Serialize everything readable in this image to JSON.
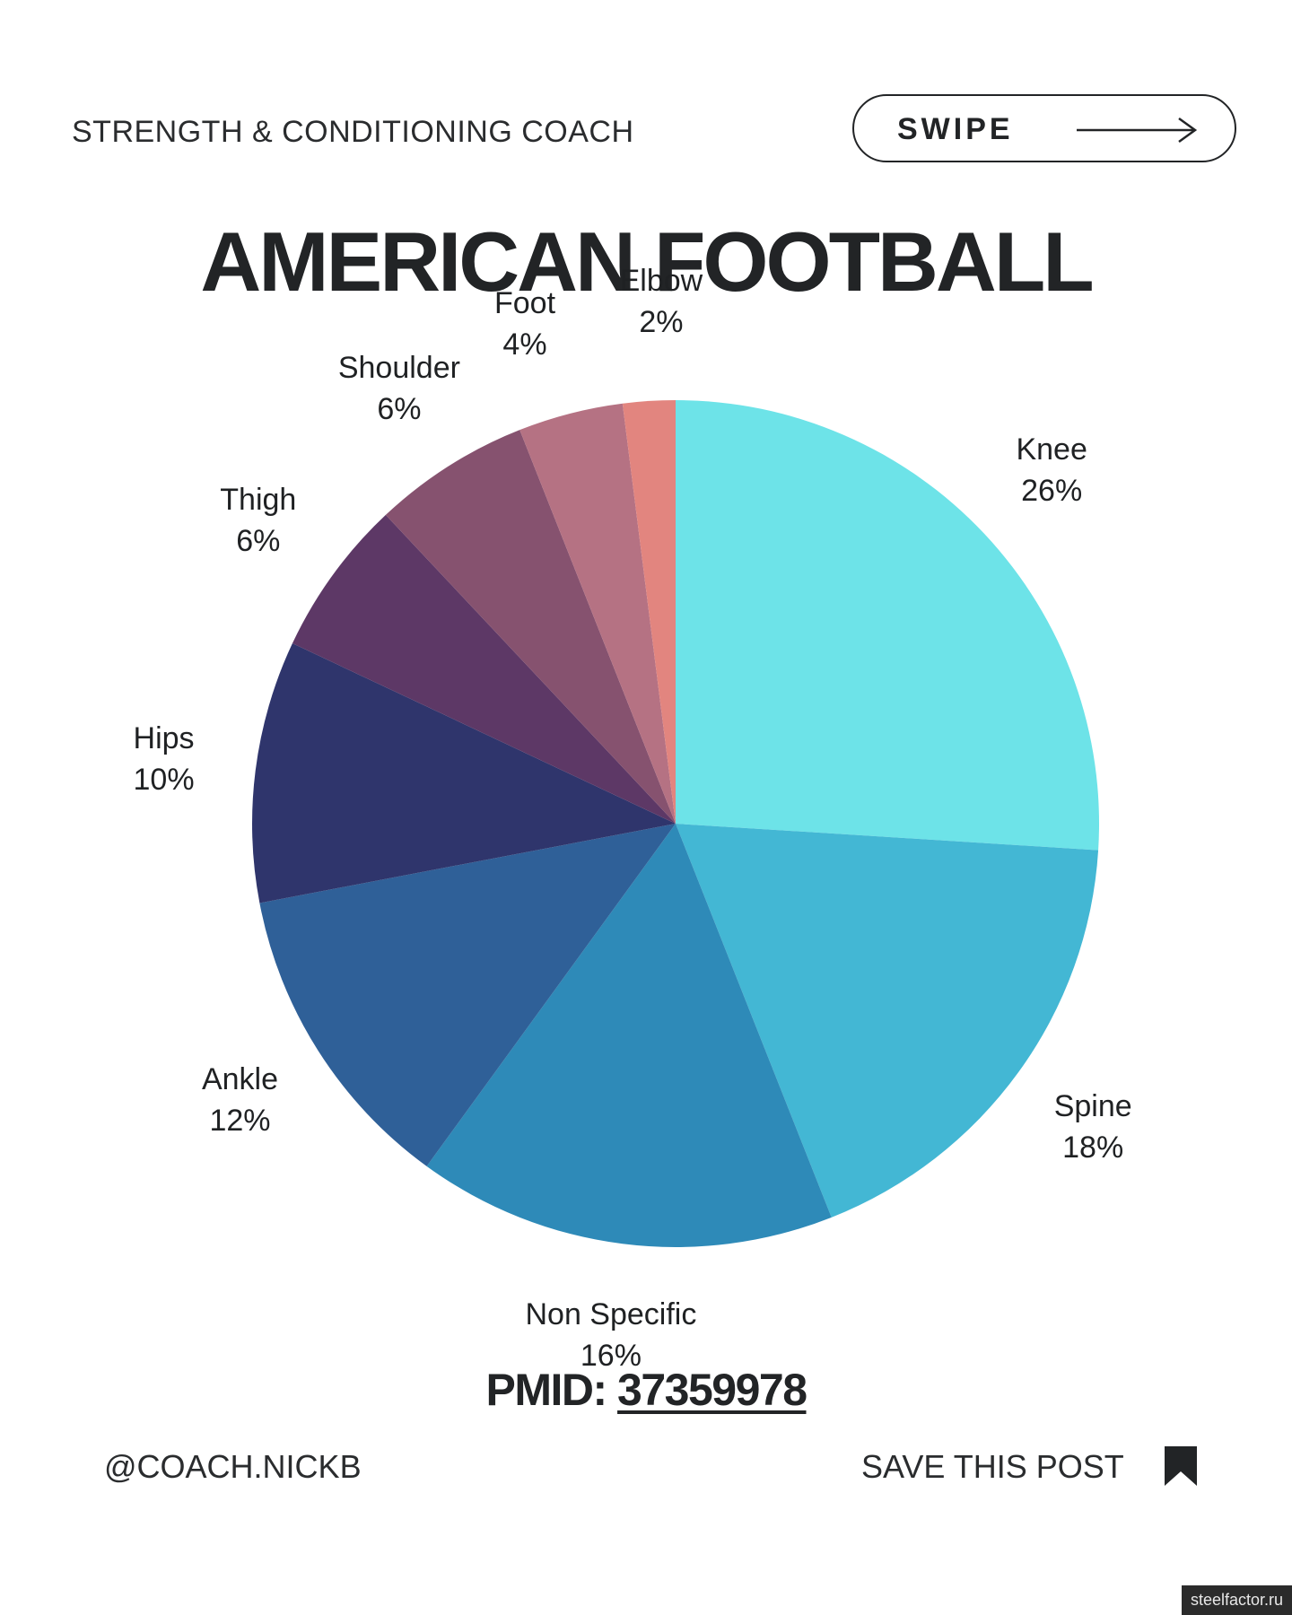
{
  "header": {
    "tagline": "STRENGTH & CONDITIONING COACH",
    "swipe_label": "SWIPE"
  },
  "title": "AMERICAN FOOTBALL",
  "chart_data": {
    "type": "pie",
    "title": "AMERICAN FOOTBALL",
    "slices": [
      {
        "label": "Knee",
        "value": 26,
        "display": "26%",
        "color": "#6de3e8"
      },
      {
        "label": "Spine",
        "value": 18,
        "display": "18%",
        "color": "#43b7d4"
      },
      {
        "label": "Non Specific",
        "value": 16,
        "display": "16%",
        "color": "#2e8ab8"
      },
      {
        "label": "Ankle",
        "value": 12,
        "display": "12%",
        "color": "#2f6098"
      },
      {
        "label": "Hips",
        "value": 10,
        "display": "10%",
        "color": "#2f356c"
      },
      {
        "label": "Thigh",
        "value": 6,
        "display": "6%",
        "color": "#5d3866"
      },
      {
        "label": "Shoulder",
        "value": 6,
        "display": "6%",
        "color": "#86526f"
      },
      {
        "label": "Foot",
        "value": 4,
        "display": "4%",
        "color": "#b57283"
      },
      {
        "label": "Elbow",
        "value": 2,
        "display": "2%",
        "color": "#e2857f"
      }
    ]
  },
  "pmid": {
    "prefix": "PMID:",
    "number": "37359978"
  },
  "footer": {
    "handle": "@COACH.NICKB",
    "save_text": "SAVE THIS POST"
  },
  "watermark": "steelfactor.ru",
  "icons": {
    "swipe": "arrow-right-icon",
    "save": "bookmark-icon"
  }
}
